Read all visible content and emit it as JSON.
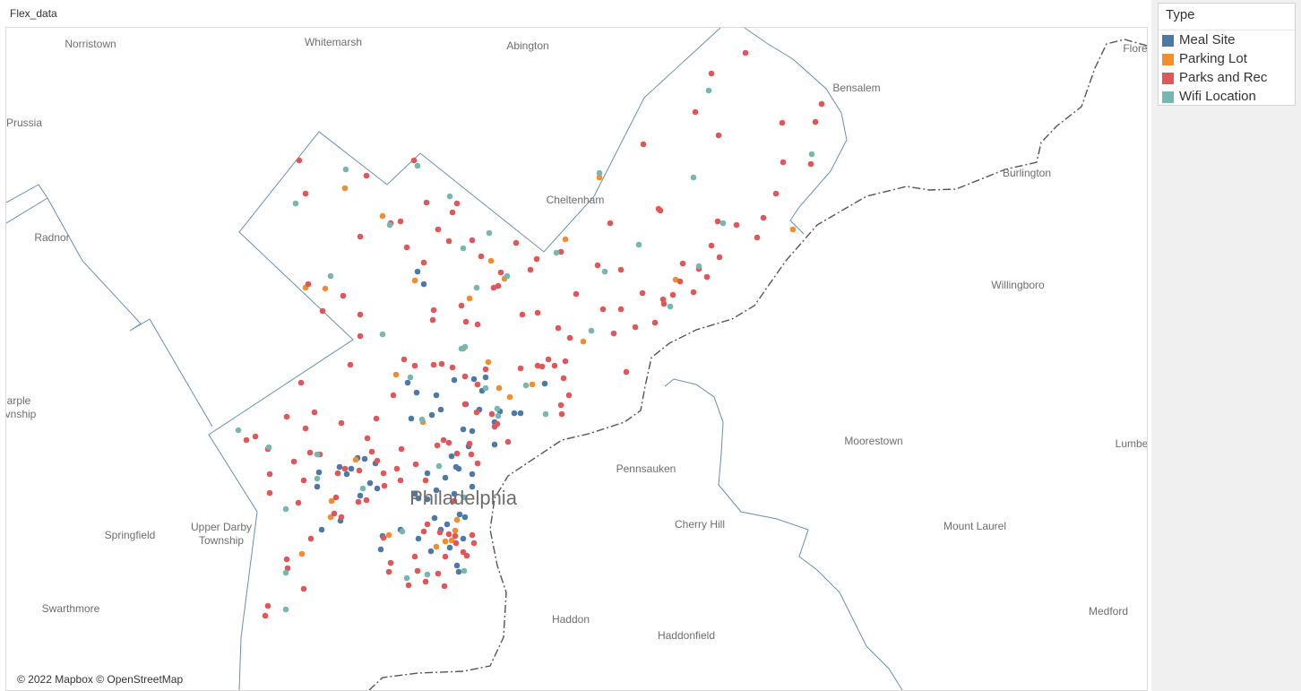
{
  "sheet": {
    "title": "Flex_data"
  },
  "legend": {
    "title": "Type",
    "items": [
      {
        "label": "Meal Site",
        "color": "#4e79a7"
      },
      {
        "label": "Parking Lot",
        "color": "#f28e2b"
      },
      {
        "label": "Parks and Rec",
        "color": "#e15759"
      },
      {
        "label": "Wifi Location",
        "color": "#76b7b2"
      }
    ]
  },
  "map": {
    "attribution": "© 2022 Mapbox © OpenStreetMap",
    "places": [
      "Norristown",
      "Whitemarsh",
      "Abington",
      "Bensalem",
      "Flore",
      "Prussia",
      "Cheltenham",
      "Burlington",
      "Radnor",
      "Willingboro",
      "arple",
      "vnship",
      "Moorestown",
      "Lumbe",
      "Pennsauken",
      "Philadelphia",
      "Springfield",
      "Upper Darby",
      "Township",
      "Cherry Hill",
      "Mount Laurel",
      "Swarthmore",
      "Haddon",
      "Haddonfield",
      "Medford"
    ]
  }
}
